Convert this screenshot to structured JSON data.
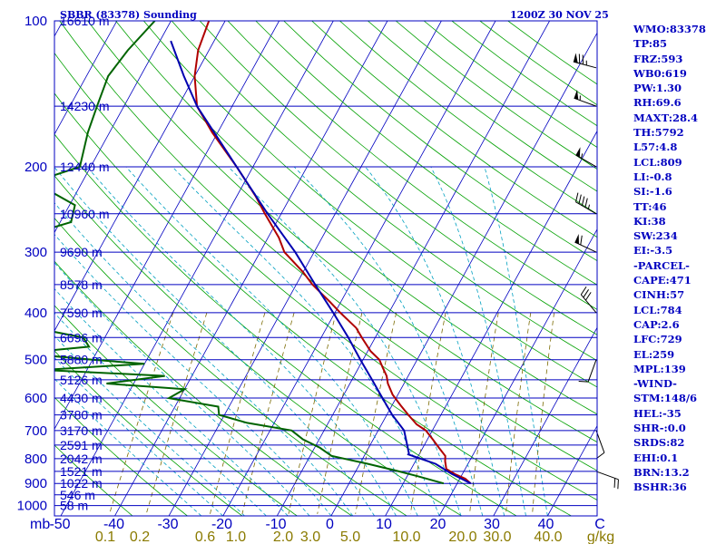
{
  "header": {
    "station": "SBBR (83378) Sounding",
    "time": "1200Z 30 NOV 25"
  },
  "chart_data": {
    "type": "skew-t log-p sounding",
    "pressure_ticks": [
      100,
      200,
      300,
      400,
      500,
      600,
      700,
      800,
      900,
      1000
    ],
    "pressure_range_mb": [
      100,
      1050
    ],
    "mb_label": "mb",
    "temp_ticks": [
      "-50",
      "-40",
      "-30",
      "-20",
      "-10",
      "0",
      "10",
      "20",
      "30",
      "40",
      "C"
    ],
    "temp_tick_values": [
      -50,
      -40,
      -30,
      -20,
      -10,
      0,
      10,
      20,
      30,
      40
    ],
    "mixing_ratio_ticks": [
      "0.1",
      "0.2",
      "0.6",
      "1.0",
      "2.0",
      "3.0",
      "5.0",
      "10.0",
      "20.0",
      "30.0",
      "40.0",
      "g/kg"
    ],
    "mixing_ratio_values": [
      0.1,
      0.2,
      0.6,
      1.0,
      2.0,
      3.0,
      5.0,
      10.0,
      20.0,
      30.0,
      40.0
    ],
    "height_levels": [
      {
        "p": 100,
        "label": "16610 m"
      },
      {
        "p": 150,
        "label": "14230 m"
      },
      {
        "p": 200,
        "label": "12440 m"
      },
      {
        "p": 250,
        "label": "10960 m"
      },
      {
        "p": 300,
        "label": "9690 m"
      },
      {
        "p": 350,
        "label": "8578 m"
      },
      {
        "p": 400,
        "label": "7590 m"
      },
      {
        "p": 450,
        "label": "6696 m"
      },
      {
        "p": 500,
        "label": "5880 m"
      },
      {
        "p": 550,
        "label": "5126 m"
      },
      {
        "p": 600,
        "label": "4430 m"
      },
      {
        "p": 650,
        "label": "3780 m"
      },
      {
        "p": 700,
        "label": "3170 m"
      },
      {
        "p": 750,
        "label": "2591 m"
      },
      {
        "p": 800,
        "label": "2042 m"
      },
      {
        "p": 850,
        "label": "1521 m"
      },
      {
        "p": 900,
        "label": "1022 m"
      },
      {
        "p": 950,
        "label": "546 m"
      },
      {
        "p": 1000,
        "label": "58 m"
      }
    ],
    "series": [
      {
        "name": "temperature",
        "color": "#b00000",
        "points": [
          [
            100,
            -73
          ],
          [
            115,
            -72
          ],
          [
            130,
            -70
          ],
          [
            150,
            -66.5
          ],
          [
            170,
            -61
          ],
          [
            200,
            -53
          ],
          [
            230,
            -46.5
          ],
          [
            250,
            -43
          ],
          [
            280,
            -38
          ],
          [
            300,
            -35.5
          ],
          [
            330,
            -30
          ],
          [
            350,
            -27
          ],
          [
            380,
            -22
          ],
          [
            400,
            -19
          ],
          [
            430,
            -14.5
          ],
          [
            450,
            -12.5
          ],
          [
            480,
            -9.5
          ],
          [
            500,
            -7
          ],
          [
            520,
            -5.5
          ],
          [
            540,
            -4
          ],
          [
            560,
            -3
          ],
          [
            590,
            -1
          ],
          [
            620,
            1.5
          ],
          [
            650,
            4
          ],
          [
            680,
            6.5
          ],
          [
            700,
            8.8
          ],
          [
            730,
            11
          ],
          [
            760,
            13
          ],
          [
            790,
            15
          ],
          [
            810,
            15.5
          ],
          [
            840,
            16.5
          ],
          [
            860,
            18.5
          ],
          [
            880,
            21
          ],
          [
            900,
            22.5
          ]
        ]
      },
      {
        "name": "dewpoint",
        "color": "#006400",
        "points": [
          [
            100,
            -83
          ],
          [
            115,
            -85
          ],
          [
            130,
            -86
          ],
          [
            150,
            -85
          ],
          [
            170,
            -84
          ],
          [
            200,
            -82
          ],
          [
            215,
            -89
          ],
          [
            240,
            -79
          ],
          [
            260,
            -78
          ],
          [
            280,
            -86
          ],
          [
            300,
            -87
          ],
          [
            320,
            -80
          ],
          [
            340,
            -79
          ],
          [
            370,
            -78
          ],
          [
            400,
            -72
          ],
          [
            430,
            -74
          ],
          [
            450,
            -64
          ],
          [
            470,
            -62
          ],
          [
            485,
            -74
          ],
          [
            500,
            -60
          ],
          [
            510,
            -50
          ],
          [
            525,
            -68
          ],
          [
            540,
            -45
          ],
          [
            560,
            -55
          ],
          [
            575,
            -40
          ],
          [
            600,
            -42
          ],
          [
            625,
            -32
          ],
          [
            650,
            -31
          ],
          [
            675,
            -25
          ],
          [
            700,
            -16
          ],
          [
            730,
            -13
          ],
          [
            760,
            -9
          ],
          [
            790,
            -6
          ],
          [
            820,
            1.5
          ],
          [
            850,
            8
          ],
          [
            870,
            12
          ],
          [
            900,
            17.5
          ]
        ]
      },
      {
        "name": "parcel",
        "color": "#0000b0",
        "points": [
          [
            110,
            -78
          ],
          [
            130,
            -72
          ],
          [
            150,
            -66.5
          ],
          [
            200,
            -53
          ],
          [
            250,
            -42.5
          ],
          [
            300,
            -33.5
          ],
          [
            350,
            -26.5
          ],
          [
            400,
            -20.3
          ],
          [
            450,
            -15
          ],
          [
            500,
            -10.5
          ],
          [
            550,
            -6.3
          ],
          [
            600,
            -2.5
          ],
          [
            650,
            1
          ],
          [
            700,
            4.8
          ],
          [
            780,
            8
          ],
          [
            784,
            8
          ],
          [
            820,
            14
          ],
          [
            860,
            18
          ],
          [
            900,
            22.5
          ]
        ]
      }
    ],
    "wind_barbs": [
      {
        "p": 125,
        "dir": 285,
        "kt": 75
      },
      {
        "p": 150,
        "dir": 290,
        "kt": 55
      },
      {
        "p": 200,
        "dir": 300,
        "kt": 55
      },
      {
        "p": 250,
        "dir": 300,
        "kt": 45
      },
      {
        "p": 300,
        "dir": 295,
        "kt": 60
      },
      {
        "p": 400,
        "dir": 320,
        "kt": 30
      },
      {
        "p": 500,
        "dir": 200,
        "kt": 10
      },
      {
        "p": 700,
        "dir": 160,
        "kt": 10
      },
      {
        "p": 850,
        "dir": 110,
        "kt": 20
      }
    ]
  },
  "indices": [
    "WMO:83378",
    "TP:85",
    "FRZ:593",
    "WB0:619",
    "PW:1.30",
    "RH:69.6",
    "MAXT:28.4",
    "TH:5792",
    "L57:4.8",
    "LCL:809",
    "LI:-0.8",
    "SI:-1.6",
    "TT:46",
    "KI:38",
    "SW:234",
    "EI:-3.5",
    "-PARCEL-",
    "CAPE:471",
    "CINH:57",
    "LCL:784",
    "CAP:2.6",
    "LFC:729",
    "EL:259",
    "MPL:139",
    "-WIND-",
    "STM:148/6",
    "HEL:-35",
    "SHR-:0.0",
    "SRDS:82",
    "EHI:0.1",
    "BRN:13.2",
    "BSHR:36"
  ],
  "colors": {
    "isobar": "#0000c0",
    "isotherm": "#0000c0",
    "dry_adiabat": "#00a000",
    "moist_adiabat": "#00a0c0",
    "mixing_ratio": "#7a6a00",
    "label": "#0000c0",
    "mixing_ratio_label": "#8a7a00"
  }
}
